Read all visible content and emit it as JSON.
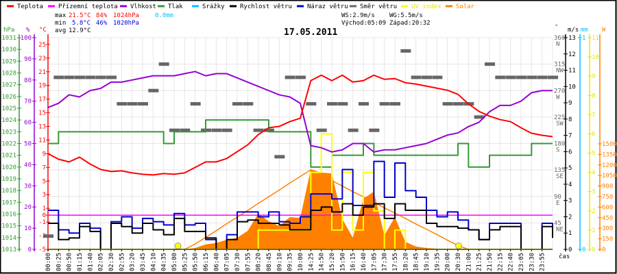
{
  "legend": [
    {
      "label": "Teplota",
      "color": "#ff0000"
    },
    {
      "label": "Přízemní teplota",
      "color": "#ff00ff"
    },
    {
      "label": "Vlhkost",
      "color": "#9400d3"
    },
    {
      "label": "Tlak",
      "color": "#339933"
    },
    {
      "label": "Srážky",
      "color": "#00bfff"
    },
    {
      "label": "Rychlost větru",
      "color": "#000000"
    },
    {
      "label": "Náraz větru",
      "color": "#0000cc"
    },
    {
      "label": "Směr větru",
      "color": "#666666"
    },
    {
      "label": "UV index",
      "color": "#ffff00"
    },
    {
      "label": "Solar",
      "color": "#ff8000"
    }
  ],
  "stats": {
    "max_label": "max",
    "max_temp": "21.5°C",
    "max_hum": "84%",
    "max_press": "1024hPa",
    "max_rain": "0.0mm",
    "min_label": "min",
    "min_temp": "5.8°C",
    "min_hum": "46%",
    "min_press": "1020hPa",
    "avg_label": "avg",
    "avg_temp": "12.9°C",
    "ws": "WS:2.9m/s",
    "wg": "WG:5.5m/s",
    "sunrise": "Východ:05:09",
    "sunset": "Západ:20:32"
  },
  "chart_data": {
    "type": "line",
    "title": "17.05.2011",
    "xlabel": "čas",
    "x": [
      "00:00",
      "00:25",
      "00:50",
      "01:15",
      "01:40",
      "02:05",
      "02:30",
      "02:55",
      "03:20",
      "03:45",
      "04:10",
      "04:35",
      "05:00",
      "05:25",
      "05:50",
      "06:15",
      "06:40",
      "07:05",
      "07:30",
      "07:55",
      "08:20",
      "08:45",
      "09:10",
      "09:35",
      "10:00",
      "14:25",
      "14:50",
      "15:20",
      "15:50",
      "16:15",
      "16:40",
      "17:05",
      "17:30",
      "17:55",
      "18:20",
      "18:45",
      "19:10",
      "19:35",
      "20:00",
      "20:30",
      "21:00",
      "21:25",
      "21:50",
      "22:15",
      "22:40",
      "23:05",
      "23:30",
      "23:55",
      "23:55"
    ],
    "axes": {
      "hpa": {
        "unit": "hPa",
        "ticks": [
          1013,
          1014,
          1015,
          1016,
          1017,
          1018,
          1019,
          1020,
          1021,
          1022,
          1023,
          1024,
          1025,
          1026,
          1027,
          1028,
          1029,
          1030,
          1031
        ],
        "range": [
          1013,
          1031
        ]
      },
      "pct": {
        "unit": "%",
        "ticks": [
          0,
          10,
          20,
          30,
          40,
          50,
          60,
          70,
          80,
          90,
          100
        ],
        "range": [
          0,
          100
        ]
      },
      "temp": {
        "unit": "°C",
        "ticks": [
          -5,
          -3,
          -1,
          0,
          1,
          3,
          5,
          7,
          9,
          11,
          13,
          15,
          17,
          19,
          21,
          23,
          25
        ],
        "range": [
          -5,
          26
        ]
      },
      "dir": {
        "unit": "°",
        "ticks": [
          45,
          90,
          135,
          180,
          225,
          270,
          315,
          360
        ],
        "compass": [
          "NE",
          "E",
          "SE",
          "S",
          "SW",
          "W",
          "NW",
          "N"
        ],
        "range": [
          0,
          360
        ]
      },
      "ms": {
        "unit": "m/s",
        "ticks": [
          0,
          1,
          2,
          3,
          4,
          5,
          6,
          7,
          8,
          9,
          10,
          11,
          12,
          13
        ],
        "range": [
          0,
          13
        ]
      },
      "mm": {
        "unit": "mm",
        "ticks": [
          0,
          1
        ],
        "range": [
          0,
          1
        ]
      },
      "uv": {
        "unit": "",
        "ticks": [
          0,
          1,
          2,
          3,
          4,
          5,
          6,
          7,
          8,
          9,
          10,
          11
        ],
        "range": [
          0,
          11
        ]
      },
      "w": {
        "unit": "W",
        "ticks": [
          0,
          150,
          300,
          450,
          600,
          750,
          900,
          1050,
          1200,
          1350,
          1500
        ],
        "range": [
          0,
          1500
        ]
      }
    },
    "series": [
      {
        "key": "temp",
        "name": "Teplota",
        "axis": "temp",
        "color": "#ff0000",
        "values": [
          9.0,
          8.2,
          7.8,
          8.5,
          7.5,
          6.7,
          6.4,
          6.5,
          6.2,
          6.0,
          5.9,
          6.1,
          6.0,
          6.2,
          7.0,
          7.8,
          7.8,
          8.3,
          9.3,
          10.3,
          11.8,
          12.8,
          13.0,
          13.7,
          14.2,
          19.7,
          20.5,
          19.7,
          20.5,
          19.5,
          19.7,
          20.5,
          19.9,
          20.0,
          19.4,
          19.2,
          18.9,
          18.6,
          18.3,
          17.7,
          16.3,
          15.2,
          14.5,
          14.0,
          13.7,
          12.8,
          12.0,
          11.7,
          11.5
        ]
      },
      {
        "key": "ground",
        "name": "Přízemní teplota",
        "axis": "temp",
        "color": "#ff00ff",
        "values": [
          0,
          0,
          0,
          0,
          0,
          0,
          0,
          0,
          0,
          0,
          0,
          0,
          0,
          0,
          0,
          0,
          0,
          0,
          0,
          0,
          0,
          0,
          0,
          0,
          0,
          0,
          0,
          0,
          0,
          0,
          0,
          0,
          0,
          0,
          0,
          0,
          0,
          0,
          0,
          0,
          0,
          0,
          0,
          0,
          0,
          0,
          0,
          0,
          0
        ]
      },
      {
        "key": "hum",
        "name": "Vlhkost",
        "axis": "pct",
        "color": "#9400d3",
        "values": [
          67,
          69,
          73,
          72,
          75,
          76,
          79,
          79,
          80,
          81,
          82,
          82,
          82,
          83,
          84,
          82,
          83,
          83,
          81,
          79,
          77,
          75,
          73,
          72,
          69,
          49,
          48,
          46,
          47,
          50,
          50,
          46,
          47,
          47,
          48,
          49,
          50,
          52,
          54,
          55,
          58,
          60,
          65,
          68,
          68,
          70,
          74,
          75,
          75
        ]
      },
      {
        "key": "press",
        "name": "Tlak",
        "axis": "hpa",
        "color": "#339933",
        "step": true,
        "values": [
          1022,
          1023,
          1023,
          1023,
          1023,
          1023,
          1023,
          1023,
          1023,
          1023,
          1023,
          1022,
          1023,
          1023,
          1023,
          1024,
          1024,
          1024,
          1024,
          1024,
          1024,
          1023,
          1023,
          1023,
          1023,
          1020,
          1020,
          1021,
          1021,
          1021,
          1022,
          1021,
          1021,
          1021,
          1021,
          1021,
          1021,
          1021,
          1021,
          1022,
          1020,
          1020,
          1021,
          1021,
          1021,
          1021,
          1022,
          1022,
          1022
        ]
      },
      {
        "key": "rain",
        "name": "Srážky",
        "axis": "mm",
        "color": "#00bfff",
        "values": [
          0,
          0,
          0,
          0,
          0,
          0,
          0,
          0,
          0,
          0,
          0,
          0,
          0,
          0,
          0,
          0,
          0,
          0,
          0,
          0,
          0,
          0,
          0,
          0,
          0,
          0,
          0,
          0,
          0,
          0,
          0,
          0,
          0,
          0,
          0,
          0,
          0,
          0,
          0,
          0,
          0,
          0,
          0,
          0,
          0,
          0,
          0,
          0,
          0
        ]
      },
      {
        "key": "ws",
        "name": "Rychlost větru",
        "axis": "ms",
        "color": "#000000",
        "step": true,
        "values": [
          1.6,
          0.6,
          0.7,
          1.4,
          1.1,
          0,
          1.6,
          1.4,
          1.0,
          1.6,
          1.2,
          0.9,
          1.9,
          1.1,
          1.1,
          0.7,
          0,
          0.6,
          1.7,
          1.8,
          1.6,
          1.6,
          1.5,
          1.2,
          1.2,
          2.4,
          2.6,
          2.3,
          2.8,
          2.1,
          2.6,
          2.8,
          1.9,
          2.8,
          2.4,
          2.4,
          1.6,
          1.4,
          1.4,
          1.3,
          1.2,
          0.6,
          1.2,
          1.4,
          1.4,
          0,
          0,
          1.4,
          0.7
        ]
      },
      {
        "key": "wg",
        "name": "Náraz větru",
        "axis": "ms",
        "color": "#0000cc",
        "step": true,
        "values": [
          2.4,
          1.2,
          1.0,
          1.6,
          1.3,
          0,
          1.7,
          2.0,
          1.3,
          1.9,
          1.7,
          1.5,
          2.2,
          1.5,
          1.6,
          0.6,
          0,
          0.9,
          2.3,
          2.3,
          2.0,
          2.3,
          1.7,
          1.6,
          2.0,
          3.4,
          3.4,
          3.1,
          4.9,
          2.7,
          2.7,
          5.4,
          3.2,
          5.3,
          3.6,
          3.2,
          2.4,
          2.0,
          2.3,
          1.8,
          1.2,
          0.6,
          1.6,
          1.6,
          1.6,
          0,
          0,
          1.6,
          1.1
        ]
      },
      {
        "key": "dir",
        "name": "Směr větru",
        "axis": "dir",
        "color": "#666666",
        "dashes": true,
        "values": [
          22.5,
          292.5,
          292.5,
          292.5,
          292.5,
          292.5,
          292.5,
          247.5,
          247.5,
          247.5,
          270,
          315,
          202.5,
          202.5,
          247.5,
          202.5,
          202.5,
          202.5,
          247.5,
          247.5,
          202.5,
          202.5,
          157.5,
          292.5,
          292.5,
          247.5,
          202.5,
          247.5,
          247.5,
          202.5,
          247.5,
          202.5,
          247.5,
          247.5,
          337.5,
          292.5,
          292.5,
          292.5,
          247.5,
          247.5,
          247.5,
          225,
          315,
          292.5,
          292.5,
          292.5,
          292.5,
          292.5,
          292.5
        ]
      },
      {
        "key": "uv",
        "name": "UV index",
        "axis": "uv",
        "color": "#ffff00",
        "step": true,
        "values": [
          0,
          0,
          0,
          0,
          0,
          0,
          0,
          0,
          0,
          0,
          0,
          0,
          0,
          0,
          0,
          0,
          0,
          0,
          0,
          0,
          1,
          1,
          1,
          1,
          1,
          4,
          6,
          1,
          4,
          1,
          4,
          2,
          0,
          1,
          0,
          0,
          0,
          0,
          0,
          0,
          0,
          0,
          0,
          0,
          0,
          0,
          0,
          0,
          0
        ]
      },
      {
        "key": "solar",
        "name": "Solar",
        "axis": "w",
        "color": "#ff8000",
        "fill": true,
        "values": [
          0,
          0,
          0,
          0,
          0,
          0,
          0,
          0,
          0,
          0,
          0,
          0,
          0,
          0,
          20,
          70,
          90,
          136,
          165,
          263,
          506,
          400,
          330,
          458,
          448,
          1140,
          1090,
          1080,
          430,
          165,
          720,
          820,
          200,
          458,
          107,
          40,
          20,
          10,
          0,
          0,
          0,
          0,
          0,
          0,
          0,
          0,
          0,
          0,
          0
        ]
      },
      {
        "key": "solar_theory",
        "name": "Solar (teoretický)",
        "axis": "w",
        "color": "#ff8000",
        "values": [
          0,
          0,
          0,
          0,
          0,
          0,
          0,
          0,
          0,
          0,
          0,
          0,
          0,
          0,
          75,
          170,
          264,
          364,
          458,
          553,
          653,
          747,
          842,
          942,
          1036,
          1130,
          1050,
          976,
          900,
          820,
          746,
          670,
          590,
          516,
          440,
          360,
          286,
          210,
          130,
          55,
          0,
          0,
          0,
          0,
          0,
          0,
          0,
          0,
          0
        ]
      }
    ],
    "markers": [
      {
        "name": "sunrise",
        "time": "05:09",
        "color": "#ffff00"
      },
      {
        "name": "sunset",
        "time": "20:32",
        "color": "#ffff00"
      }
    ]
  }
}
